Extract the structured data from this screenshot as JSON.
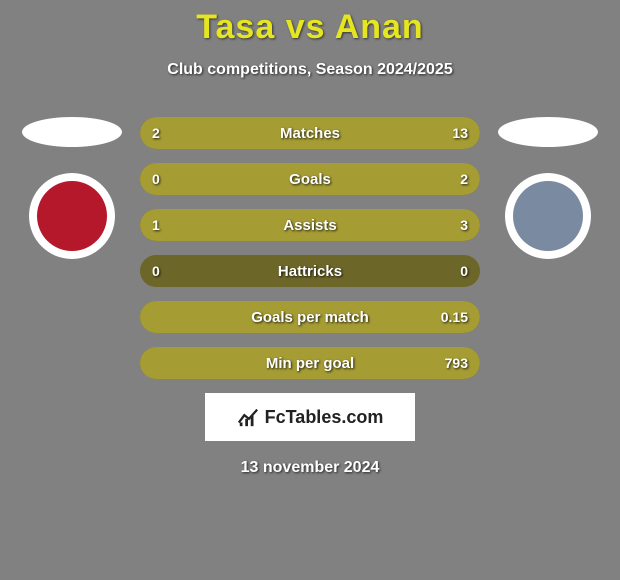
{
  "background_color": "#818181",
  "title": {
    "text": "Tasa vs Anan",
    "color": "#e5e521",
    "fontsize": 34
  },
  "subtitle": {
    "text": "Club competitions, Season 2024/2025",
    "fontsize": 16
  },
  "date": "13 november 2024",
  "footer_brand": "FcTables.com",
  "team_left": {
    "oval_color": "#ffffff",
    "badge_bg": "#ffffff",
    "badge_inner_bg": "#b5182b",
    "badge_text": ""
  },
  "team_right": {
    "oval_color": "#ffffff",
    "badge_bg": "#ffffff",
    "badge_inner_bg": "#7a8aa0",
    "badge_text": ""
  },
  "bars": {
    "track_color": "#6c6628",
    "left_fill_color": "#a59c34",
    "right_fill_color": "#a59c34",
    "height": 32,
    "radius": 16,
    "items": [
      {
        "label": "Matches",
        "left": "2",
        "right": "13",
        "left_pct": 13,
        "right_pct": 87
      },
      {
        "label": "Goals",
        "left": "0",
        "right": "2",
        "left_pct": 0,
        "right_pct": 100
      },
      {
        "label": "Assists",
        "left": "1",
        "right": "3",
        "left_pct": 25,
        "right_pct": 75
      },
      {
        "label": "Hattricks",
        "left": "0",
        "right": "0",
        "left_pct": 0,
        "right_pct": 0
      },
      {
        "label": "Goals per match",
        "left": "",
        "right": "0.15",
        "left_pct": 0,
        "right_pct": 100
      },
      {
        "label": "Min per goal",
        "left": "",
        "right": "793",
        "left_pct": 0,
        "right_pct": 100
      }
    ]
  }
}
